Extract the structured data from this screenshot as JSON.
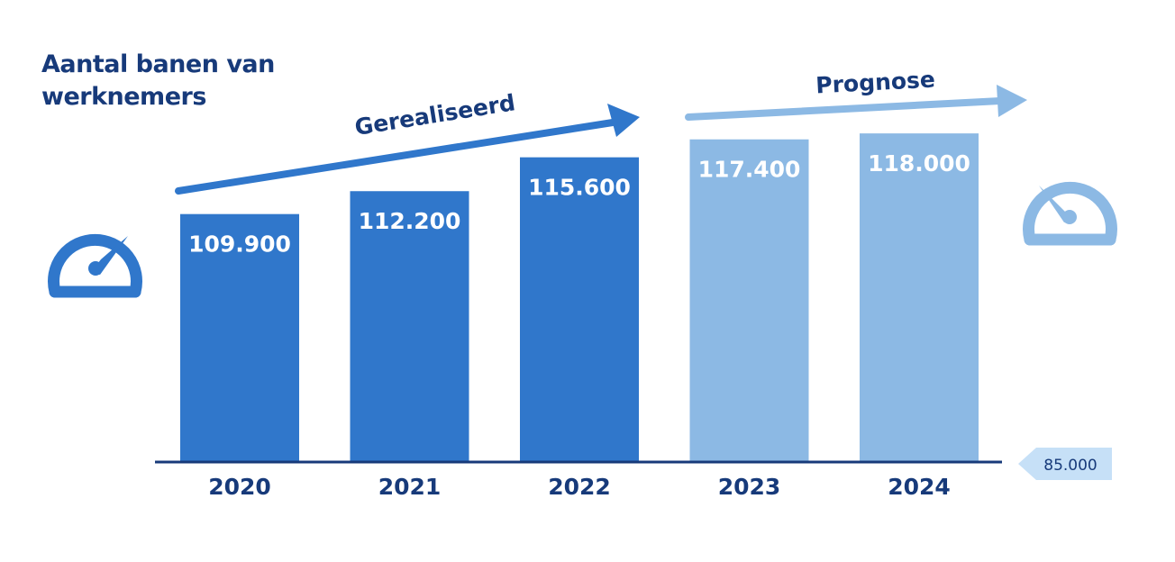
{
  "title_lines": [
    "Aantal banen van",
    "werknemers"
  ],
  "colors": {
    "realized": "#3077cb",
    "forecast": "#8cb9e4",
    "text_dark": "#173a7a",
    "baseline_tag": "#c6e0f7"
  },
  "icons": {
    "left": "speedometer-icon",
    "right": "speedometer-icon"
  },
  "chart_data": {
    "type": "bar",
    "title": "Aantal banen van werknemers",
    "categories": [
      "2020",
      "2021",
      "2022",
      "2023",
      "2024"
    ],
    "values": [
      109900,
      112200,
      115600,
      117400,
      118000
    ],
    "value_labels": [
      "109.900",
      "112.200",
      "115.600",
      "117.400",
      "118.000"
    ],
    "status": [
      "realized",
      "realized",
      "realized",
      "forecast",
      "forecast"
    ],
    "ylim": [
      85000,
      120000
    ],
    "baseline_label": "85.000",
    "annotations": [
      {
        "text": "Gerealiseerd",
        "covers": [
          "2020",
          "2021",
          "2022"
        ]
      },
      {
        "text": "Prognose",
        "covers": [
          "2023",
          "2024"
        ]
      }
    ],
    "grid": false,
    "legend": "none"
  }
}
